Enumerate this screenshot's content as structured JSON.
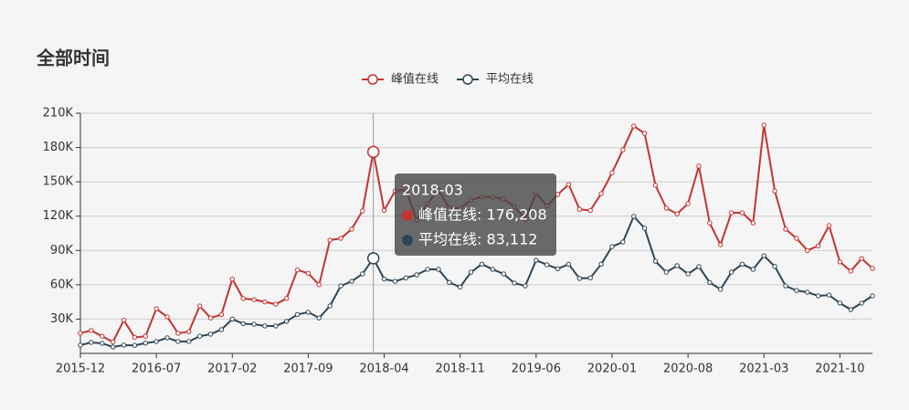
{
  "chart_data": {
    "type": "line",
    "title": "全部时间",
    "categories": [
      "2015-12",
      null,
      null,
      null,
      null,
      null,
      null,
      "2016-07",
      null,
      null,
      null,
      null,
      null,
      null,
      "2017-02",
      null,
      null,
      null,
      null,
      null,
      null,
      "2017-09",
      null,
      null,
      null,
      null,
      null,
      null,
      "2018-04",
      null,
      null,
      null,
      null,
      null,
      null,
      "2018-11",
      null,
      null,
      null,
      null,
      null,
      null,
      "2019-06",
      null,
      null,
      null,
      null,
      null,
      null,
      "2020-01",
      null,
      null,
      null,
      null,
      null,
      null,
      "2020-08",
      null,
      null,
      null,
      null,
      null,
      null,
      "2021-03",
      null,
      null,
      null,
      null,
      null,
      null,
      "2021-10",
      null,
      null,
      null
    ],
    "series": [
      {
        "name": "峰值在线",
        "color": "#c23531",
        "values": [
          17600,
          20000,
          15000,
          10000,
          29000,
          14000,
          15000,
          39000,
          32000,
          17600,
          19000,
          41500,
          31000,
          34000,
          65000,
          48000,
          47000,
          45000,
          43000,
          48000,
          73000,
          70000,
          60000,
          99000,
          100600,
          108600,
          124600,
          176208,
          125000,
          142000,
          143000,
          116600,
          131000,
          143000,
          127000,
          127000,
          134000,
          137000,
          136500,
          135000,
          128500,
          117400,
          139700,
          129000,
          139000,
          147700,
          126000,
          125000,
          139700,
          158000,
          178000,
          198800,
          192400,
          147000,
          127000,
          122000,
          131000,
          163700,
          114000,
          95000,
          123000,
          123000,
          114000,
          199600,
          142000,
          108600,
          100600,
          90000,
          94000,
          111800,
          80000,
          71900,
          83000,
          74300
        ]
      },
      {
        "name": "平均在线",
        "color": "#2f4554",
        "values": [
          7200,
          9600,
          8800,
          5600,
          7200,
          7000,
          9000,
          10400,
          13600,
          10400,
          10400,
          15000,
          16800,
          20800,
          30000,
          26000,
          25500,
          24000,
          24000,
          28000,
          34000,
          36000,
          31000,
          41500,
          59000,
          63000,
          69500,
          83112,
          65000,
          63000,
          66000,
          68700,
          73500,
          73500,
          62000,
          58000,
          71000,
          78000,
          73500,
          69500,
          61500,
          59000,
          81400,
          77500,
          74000,
          78000,
          65500,
          66000,
          78000,
          93400,
          97400,
          119800,
          109400,
          80600,
          71000,
          76700,
          69500,
          75900,
          62000,
          56000,
          71000,
          78000,
          73500,
          85400,
          76000,
          59000,
          55000,
          53500,
          50300,
          51000,
          44000,
          38300,
          44000,
          50300
        ]
      }
    ],
    "ylim": [
      0,
      210000
    ],
    "yticks": [
      {
        "value": 30000,
        "label": "30K"
      },
      {
        "value": 60000,
        "label": "60K"
      },
      {
        "value": 90000,
        "label": "90K"
      },
      {
        "value": 120000,
        "label": "120K"
      },
      {
        "value": 150000,
        "label": "150K"
      },
      {
        "value": 180000,
        "label": "180K"
      },
      {
        "value": 210000,
        "label": "210K"
      }
    ],
    "grid": true,
    "tooltip": {
      "title": "2018-03",
      "lines": [
        "峰值在线: 176,208",
        "平均在线: 83,112"
      ]
    }
  }
}
